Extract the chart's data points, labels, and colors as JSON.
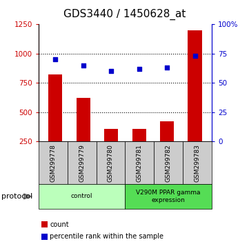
{
  "title": "GDS3440 / 1450628_at",
  "samples": [
    "GSM299778",
    "GSM299779",
    "GSM299780",
    "GSM299781",
    "GSM299782",
    "GSM299783"
  ],
  "counts": [
    825,
    625,
    355,
    360,
    420,
    1200
  ],
  "percentiles": [
    70,
    65,
    60,
    62,
    63,
    73
  ],
  "left_ylim": [
    250,
    1250
  ],
  "left_yticks": [
    250,
    500,
    750,
    1000,
    1250
  ],
  "right_ylim": [
    0,
    100
  ],
  "right_yticks": [
    0,
    25,
    50,
    75,
    100
  ],
  "right_yticklabels": [
    "0",
    "25",
    "50",
    "75",
    "100%"
  ],
  "bar_color": "#cc0000",
  "scatter_color": "#0000cc",
  "protocol_groups": [
    {
      "label": "control",
      "start": 0,
      "end": 3,
      "color": "#bbffbb"
    },
    {
      "label": "V290M PPAR gamma\nexpression",
      "start": 3,
      "end": 6,
      "color": "#55dd55"
    }
  ],
  "protocol_label": "protocol",
  "legend_items": [
    {
      "color": "#cc0000",
      "label": "count"
    },
    {
      "color": "#0000cc",
      "label": "percentile rank within the sample"
    }
  ],
  "tick_color_left": "#cc0000",
  "tick_color_right": "#0000cc",
  "sample_box_color": "#cccccc",
  "title_fontsize": 11
}
